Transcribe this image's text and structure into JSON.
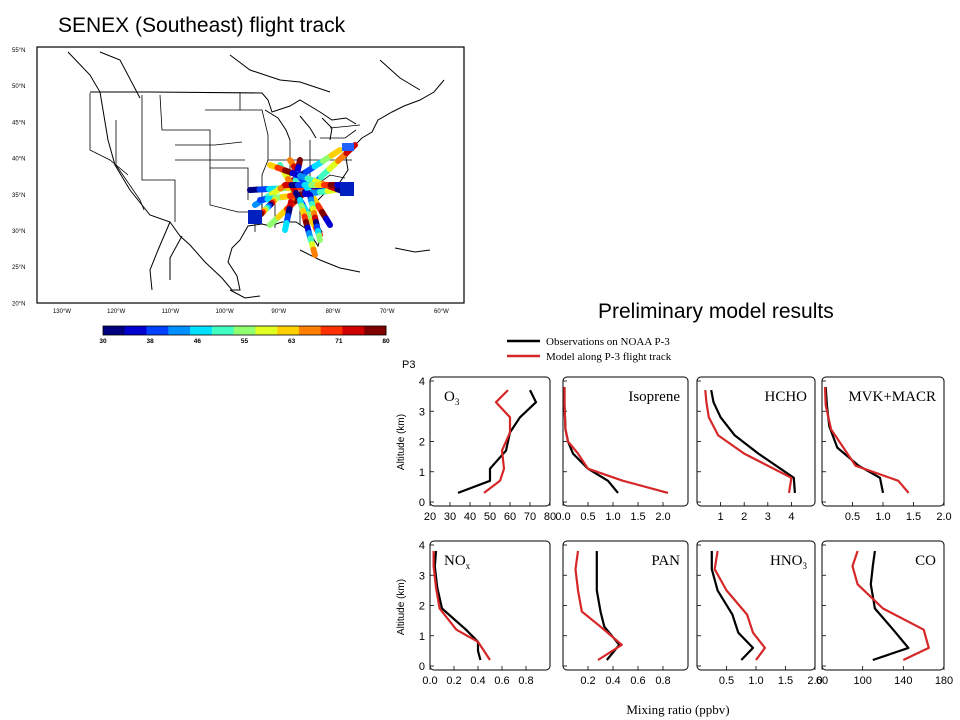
{
  "map": {
    "title": "SENEX (Southeast) flight track",
    "lat_labels": [
      "55°N",
      "50°N",
      "45°N",
      "40°N",
      "35°N",
      "30°N",
      "25°N",
      "20°N"
    ],
    "lon_labels": [
      "130°W",
      "120°W",
      "110°W",
      "100°W",
      "90°W",
      "80°W",
      "70°W",
      "60°W"
    ],
    "colorbar": {
      "ticks": [
        "30",
        "38",
        "46",
        "55",
        "63",
        "71",
        "80"
      ],
      "colors": [
        "#00007f",
        "#0000d0",
        "#0040ff",
        "#0090ff",
        "#00e0ff",
        "#40ffc0",
        "#90ff70",
        "#e0ff20",
        "#ffd000",
        "#ff8000",
        "#ff3000",
        "#d00000",
        "#800000"
      ]
    }
  },
  "profiles": {
    "title": "Preliminary model results",
    "panel_group_label": "P3",
    "ylabel": "Altitude (km)",
    "xlabel": "Mixing ratio (ppbv)",
    "legend": [
      {
        "label": "Observations on NOAA P-3",
        "color": "#000000"
      },
      {
        "label": "Model along P-3 flight track",
        "color": "#d62728"
      }
    ]
  },
  "chart_data": [
    {
      "type": "line",
      "name": "O3",
      "label_main": "O",
      "label_sub": "3",
      "xlim": [
        20,
        80
      ],
      "ylim": [
        0,
        4
      ],
      "xticks": [
        "20",
        "30",
        "40",
        "50",
        "60",
        "70",
        "80"
      ],
      "yticks": [
        "0",
        "1",
        "2",
        "3",
        "4"
      ],
      "series": [
        {
          "name": "Observations on NOAA P-3",
          "x": [
            34,
            50,
            50,
            58,
            60,
            65,
            73,
            70
          ],
          "y": [
            0.3,
            0.7,
            1.1,
            1.7,
            2.3,
            2.8,
            3.3,
            3.7
          ]
        },
        {
          "name": "Model along P-3 flight track",
          "x": [
            47,
            55,
            57,
            56,
            60,
            60,
            53,
            59
          ],
          "y": [
            0.3,
            0.7,
            1.1,
            1.7,
            2.3,
            2.8,
            3.3,
            3.7
          ]
        }
      ]
    },
    {
      "type": "line",
      "name": "Isoprene",
      "label_main": "Isoprene",
      "label_sub": "",
      "xlim": [
        0,
        2.5
      ],
      "ylim": [
        0,
        4
      ],
      "xticks": [
        "0.0",
        "0.5",
        "1.0",
        "1.5",
        "2.0"
      ],
      "yticks": [
        "0",
        "1",
        "2",
        "3",
        "4"
      ],
      "series": [
        {
          "name": "Observations on NOAA P-3",
          "x": [
            1.1,
            0.9,
            0.5,
            0.2,
            0.1,
            0.05,
            0.03,
            0.03
          ],
          "y": [
            0.3,
            0.7,
            1.1,
            1.6,
            2.0,
            2.4,
            3.2,
            3.8
          ]
        },
        {
          "name": "Model along P-3 flight track",
          "x": [
            2.1,
            1.2,
            0.5,
            0.3,
            0.1,
            0.05,
            0.03,
            0.03
          ],
          "y": [
            0.3,
            0.7,
            1.1,
            1.6,
            2.0,
            2.4,
            3.2,
            3.8
          ]
        }
      ]
    },
    {
      "type": "line",
      "name": "HCHO",
      "label_main": "HCHO",
      "label_sub": "",
      "xlim": [
        0,
        5
      ],
      "ylim": [
        0,
        4
      ],
      "xticks": [
        "1",
        "2",
        "3",
        "4"
      ],
      "yticks": [
        "0",
        "1",
        "2",
        "3",
        "4"
      ],
      "series": [
        {
          "name": "Observations on NOAA P-3",
          "x": [
            4.15,
            4.1,
            2.6,
            1.6,
            1.0,
            0.7,
            0.6
          ],
          "y": [
            0.3,
            0.8,
            1.6,
            2.2,
            2.8,
            3.3,
            3.7
          ]
        },
        {
          "name": "Model along P-3 flight track",
          "x": [
            3.9,
            4.0,
            2.0,
            0.9,
            0.5,
            0.4,
            0.35
          ],
          "y": [
            0.3,
            0.8,
            1.6,
            2.2,
            2.8,
            3.3,
            3.7
          ]
        }
      ]
    },
    {
      "type": "line",
      "name": "MVK+MACR",
      "label_main": "MVK+MACR",
      "label_sub": "",
      "xlim": [
        0,
        2.0
      ],
      "ylim": [
        0,
        4
      ],
      "xticks": [
        "0.5",
        "1.0",
        "1.5",
        "2.0"
      ],
      "yticks": [
        "0",
        "1",
        "2",
        "3",
        "4"
      ],
      "series": [
        {
          "name": "Observations on NOAA P-3",
          "x": [
            1.0,
            0.95,
            0.6,
            0.25,
            0.12,
            0.08,
            0.06
          ],
          "y": [
            0.3,
            0.8,
            1.2,
            1.8,
            2.5,
            3.2,
            3.8
          ]
        },
        {
          "name": "Model along P-3 flight track",
          "x": [
            1.42,
            1.25,
            0.55,
            0.35,
            0.15,
            0.06,
            0.05
          ],
          "y": [
            0.3,
            0.7,
            1.2,
            1.8,
            2.4,
            3.2,
            3.8
          ]
        }
      ]
    },
    {
      "type": "line",
      "name": "NOx",
      "label_main": "NO",
      "label_sub": "x",
      "xlim": [
        0,
        1.0
      ],
      "ylim": [
        0,
        4
      ],
      "xticks": [
        "0.0",
        "0.2",
        "0.4",
        "0.6",
        "0.8"
      ],
      "yticks": [
        "0",
        "1",
        "2",
        "3",
        "4"
      ],
      "series": [
        {
          "name": "Observations on NOAA P-3",
          "x": [
            0.42,
            0.4,
            0.4,
            0.3,
            0.1,
            0.06,
            0.04,
            0.05
          ],
          "y": [
            0.2,
            0.5,
            0.8,
            1.2,
            1.9,
            2.6,
            3.3,
            3.8
          ]
        },
        {
          "name": "Model along P-3 flight track",
          "x": [
            0.5,
            0.45,
            0.4,
            0.22,
            0.08,
            0.05,
            0.03,
            0.03
          ],
          "y": [
            0.2,
            0.5,
            0.8,
            1.2,
            1.9,
            2.6,
            3.3,
            3.8
          ]
        }
      ]
    },
    {
      "type": "line",
      "name": "PAN",
      "label_main": "PAN",
      "label_sub": "",
      "xlim": [
        0,
        1.0
      ],
      "ylim": [
        0,
        4
      ],
      "xticks": [
        "0.2",
        "0.4",
        "0.6",
        "0.8"
      ],
      "yticks": [
        "0",
        "1",
        "2",
        "3",
        "4"
      ],
      "series": [
        {
          "name": "Observations on NOAA P-3",
          "x": [
            0.35,
            0.45,
            0.33,
            0.3,
            0.27,
            0.27,
            0.27
          ],
          "y": [
            0.2,
            0.7,
            1.3,
            1.8,
            2.5,
            3.2,
            3.8
          ]
        },
        {
          "name": "Model along P-3 flight track",
          "x": [
            0.28,
            0.47,
            0.3,
            0.15,
            0.12,
            0.1,
            0.12
          ],
          "y": [
            0.2,
            0.7,
            1.3,
            1.8,
            2.5,
            3.2,
            3.8
          ]
        }
      ]
    },
    {
      "type": "line",
      "name": "HNO3",
      "label_main": "HNO",
      "label_sub": "3",
      "xlim": [
        0,
        2.0
      ],
      "ylim": [
        0,
        4
      ],
      "xticks": [
        "0.5",
        "1.0",
        "1.5",
        "2.0"
      ],
      "yticks": [
        "0",
        "1",
        "2",
        "3",
        "4"
      ],
      "series": [
        {
          "name": "Observations on NOAA P-3",
          "x": [
            0.75,
            0.95,
            0.7,
            0.6,
            0.35,
            0.25,
            0.25
          ],
          "y": [
            0.2,
            0.6,
            1.1,
            1.7,
            2.5,
            3.2,
            3.8
          ]
        },
        {
          "name": "Model along P-3 flight track",
          "x": [
            1.0,
            1.15,
            0.95,
            0.85,
            0.5,
            0.3,
            0.35
          ],
          "y": [
            0.2,
            0.6,
            1.1,
            1.7,
            2.5,
            3.2,
            3.8
          ]
        }
      ]
    },
    {
      "type": "line",
      "name": "CO",
      "label_main": "CO",
      "label_sub": "",
      "xlim": [
        60,
        180
      ],
      "ylim": [
        0,
        4
      ],
      "xticks": [
        "60",
        "100",
        "140",
        "180"
      ],
      "yticks": [
        "0",
        "1",
        "2",
        "3",
        "4"
      ],
      "series": [
        {
          "name": "Observations on NOAA P-3",
          "x": [
            110,
            145,
            130,
            112,
            108,
            110,
            112
          ],
          "y": [
            0.2,
            0.6,
            1.2,
            1.9,
            2.7,
            3.3,
            3.8
          ]
        },
        {
          "name": "Model along P-3 flight track",
          "x": [
            140,
            165,
            160,
            120,
            95,
            90,
            95
          ],
          "y": [
            0.2,
            0.6,
            1.2,
            1.9,
            2.7,
            3.3,
            3.8
          ]
        }
      ]
    }
  ]
}
